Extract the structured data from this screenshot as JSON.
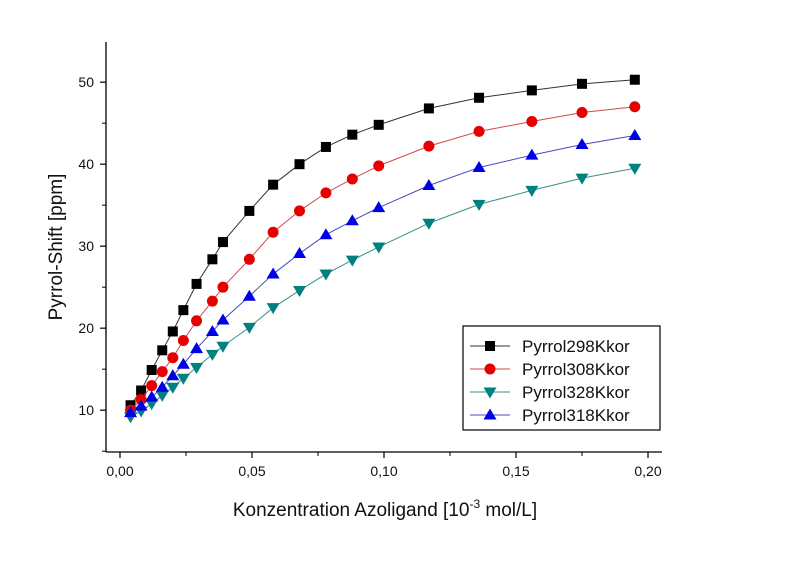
{
  "chart_data": {
    "type": "line",
    "title": "",
    "xlabel_main": "Konzentration Azoligand [10",
    "xlabel_sup": "-3",
    "xlabel_tail": " mol/L]",
    "ylabel": "Pyrrol-Shift [ppm]",
    "xlim": [
      -0.0053,
      0.2053
    ],
    "ylim": [
      4.9,
      54.9
    ],
    "xticks": [
      0.0,
      0.05,
      0.1,
      0.15,
      0.2
    ],
    "xtick_labels": [
      "0,00",
      "0,05",
      "0,10",
      "0,15",
      "0,20"
    ],
    "yticks": [
      10,
      20,
      30,
      40,
      50
    ],
    "ytick_labels": [
      "10",
      "20",
      "30",
      "40",
      "50"
    ],
    "grid": false,
    "legend_position": "bottom-right",
    "x": [
      0.004,
      0.008,
      0.012,
      0.016,
      0.02,
      0.024,
      0.029,
      0.035,
      0.039,
      0.049,
      0.058,
      0.068,
      0.078,
      0.088,
      0.098,
      0.117,
      0.136,
      0.156,
      0.175,
      0.195
    ],
    "series": [
      {
        "name": "Pyrrol298Kkor",
        "marker": "square",
        "color": "#000000",
        "line_color": "#333333",
        "values": [
          10.6,
          12.4,
          14.9,
          17.3,
          19.6,
          22.2,
          25.4,
          28.4,
          30.5,
          34.3,
          37.5,
          40.0,
          42.1,
          43.6,
          44.8,
          46.8,
          48.1,
          49.0,
          49.8,
          50.3
        ]
      },
      {
        "name": "Pyrrol308Kkor",
        "marker": "circle",
        "color": "#e60000",
        "line_color": "#d04a4a",
        "values": [
          10.0,
          11.3,
          13.0,
          14.7,
          16.4,
          18.5,
          20.9,
          23.3,
          25.0,
          28.4,
          31.7,
          34.3,
          36.5,
          38.2,
          39.8,
          42.2,
          44.0,
          45.2,
          46.3,
          47.0
        ]
      },
      {
        "name": "Pyrrol328Kkor",
        "marker": "triangle-down",
        "color": "#008080",
        "line_color": "#3a8f88",
        "values": [
          9.2,
          9.9,
          10.8,
          11.8,
          12.8,
          13.9,
          15.2,
          16.8,
          17.8,
          20.1,
          22.5,
          24.6,
          26.6,
          28.3,
          29.9,
          32.8,
          35.1,
          36.8,
          38.3,
          39.5
        ]
      },
      {
        "name": "Pyrrol318Kkor",
        "marker": "triangle-up",
        "color": "#0000e6",
        "line_color": "#4848c0",
        "values": [
          9.7,
          10.5,
          11.6,
          12.8,
          14.2,
          15.6,
          17.5,
          19.6,
          21.0,
          23.9,
          26.6,
          29.1,
          31.4,
          33.1,
          34.7,
          37.4,
          39.6,
          41.1,
          42.4,
          43.5
        ]
      }
    ]
  }
}
